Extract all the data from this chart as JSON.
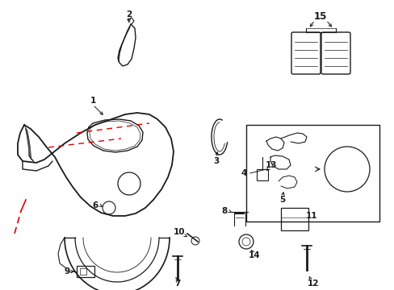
{
  "background_color": "#ffffff",
  "line_color": "#1a1a1a",
  "red_color": "#dd0000",
  "label_fontsize": 6.5,
  "fig_w": 4.89,
  "fig_h": 3.6,
  "dpi": 100
}
